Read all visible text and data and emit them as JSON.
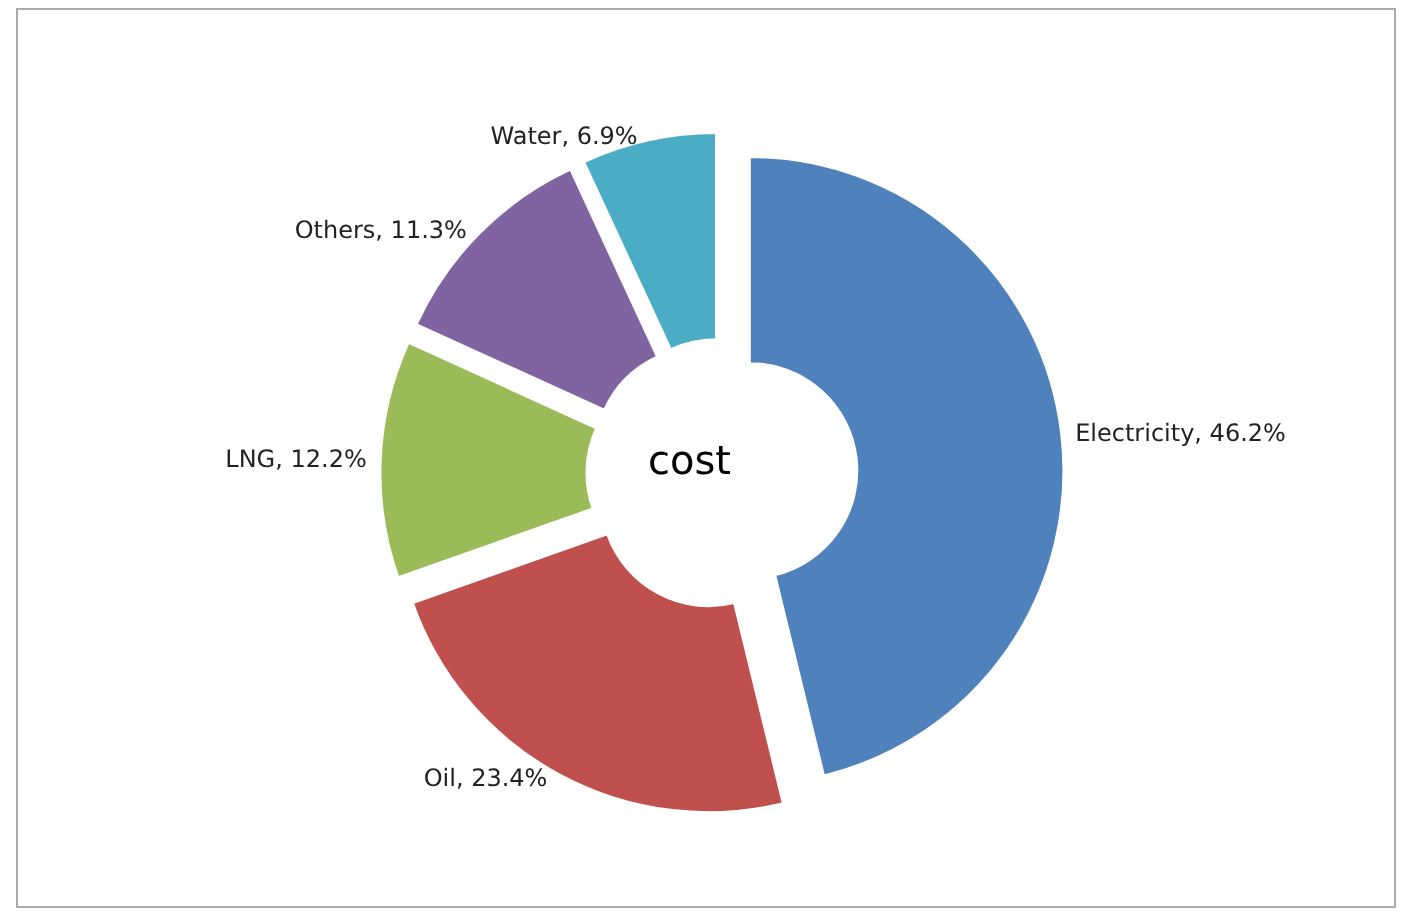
{
  "chart_data": {
    "type": "donut",
    "title": "cost",
    "categories": [
      "Electricity",
      "Oil",
      "LNG",
      "Others",
      "Water"
    ],
    "values": [
      46.2,
      23.4,
      12.2,
      11.3,
      6.9
    ],
    "value_labels": [
      "46.2%",
      "23.4%",
      "12.2%",
      "11.3%",
      "6.9%"
    ],
    "colors": [
      "#4f81bd",
      "#c0504d",
      "#9bbb59",
      "#8064a2",
      "#4bacc6"
    ],
    "legend": false
  }
}
